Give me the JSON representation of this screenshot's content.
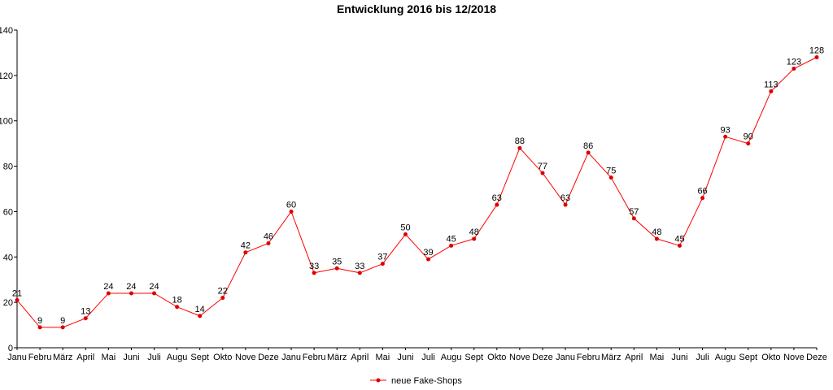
{
  "title": "Entwicklung 2016 bis 12/2018",
  "colors": {
    "series": "#ff0000",
    "axis": "#000000",
    "marker": "#dd0000"
  },
  "chart_data": {
    "type": "line",
    "title": "Entwicklung 2016 bis 12/2018",
    "xlabel": "",
    "ylabel": "",
    "ylim": [
      0,
      140
    ],
    "yticks": [
      0,
      20,
      40,
      60,
      80,
      100,
      120,
      140
    ],
    "grid": false,
    "legend_position": "bottom-center",
    "categories": [
      "Janu",
      "Febru",
      "März",
      "April",
      "Mai",
      "Juni",
      "Juli",
      "Augu",
      "Sept",
      "Okto",
      "Nove",
      "Deze",
      "Janu",
      "Febru",
      "März",
      "April",
      "Mai",
      "Juni",
      "Juli",
      "Augu",
      "Sept",
      "Okto",
      "Nove",
      "Deze",
      "Janu",
      "Febru",
      "März",
      "April",
      "Mai",
      "Juni",
      "Juli",
      "Augu",
      "Sept",
      "Okto",
      "Nove",
      "Deze"
    ],
    "series": [
      {
        "name": "neue Fake-Shops",
        "values": [
          21,
          9,
          9,
          13,
          24,
          24,
          24,
          18,
          14,
          22,
          42,
          46,
          60,
          33,
          35,
          33,
          37,
          50,
          39,
          45,
          48,
          63,
          88,
          77,
          63,
          86,
          75,
          57,
          48,
          45,
          66,
          93,
          90,
          113,
          123,
          128
        ]
      }
    ]
  }
}
